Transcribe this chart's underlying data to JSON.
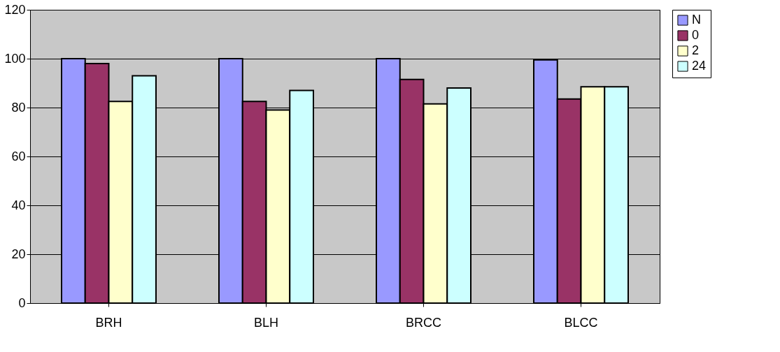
{
  "chart_data": {
    "type": "bar",
    "categories": [
      "BRH",
      "BLH",
      "BRCC",
      "BLCC"
    ],
    "series": [
      {
        "name": "N",
        "color": "#9999ff",
        "values": [
          100,
          100,
          100,
          99.5
        ]
      },
      {
        "name": "0",
        "color": "#993366",
        "values": [
          98,
          82.5,
          91.5,
          83.5
        ]
      },
      {
        "name": "2",
        "color": "#ffffcc",
        "values": [
          82.5,
          79,
          81.5,
          88.5
        ]
      },
      {
        "name": "24",
        "color": "#ccffff",
        "values": [
          93,
          87,
          88,
          88.5
        ]
      }
    ],
    "ylim": [
      0,
      120
    ],
    "yticks": [
      0,
      20,
      40,
      60,
      80,
      100,
      120
    ],
    "grid": "y",
    "legend": "right"
  }
}
